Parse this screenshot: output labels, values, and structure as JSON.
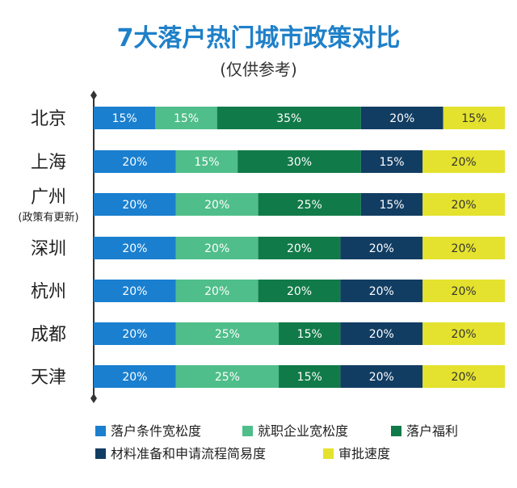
{
  "chart_data": {
    "type": "bar",
    "orientation": "horizontal",
    "stacked": true,
    "title": "7大落户热门城市政策对比",
    "subtitle": "(仅供参考)",
    "unit": "%",
    "categories": [
      {
        "name": "北京",
        "note": ""
      },
      {
        "name": "上海",
        "note": ""
      },
      {
        "name": "广州",
        "note": "(政策有更新)"
      },
      {
        "name": "深圳",
        "note": ""
      },
      {
        "name": "杭州",
        "note": ""
      },
      {
        "name": "成都",
        "note": ""
      },
      {
        "name": "天津",
        "note": ""
      }
    ],
    "series": [
      {
        "name": "落户条件宽松度",
        "color": "#1a7fcf",
        "values": [
          15,
          20,
          20,
          20,
          20,
          20,
          20
        ]
      },
      {
        "name": "就职企业宽松度",
        "color": "#4fbe8a",
        "values": [
          15,
          15,
          20,
          20,
          20,
          25,
          25
        ]
      },
      {
        "name": "落户福利",
        "color": "#117a49",
        "values": [
          35,
          30,
          25,
          20,
          20,
          15,
          15
        ]
      },
      {
        "name": "材料准备和申请流程简易度",
        "color": "#123d63",
        "values": [
          20,
          15,
          15,
          20,
          20,
          20,
          20
        ]
      },
      {
        "name": "审批速度",
        "color": "#e4e22e",
        "values": [
          15,
          20,
          20,
          20,
          20,
          20,
          20
        ]
      }
    ],
    "data_label_colors": [
      "#ffffff",
      "#ffffff",
      "#ffffff",
      "#ffffff",
      "#333333"
    ],
    "legend_position": "bottom",
    "grid": false
  }
}
